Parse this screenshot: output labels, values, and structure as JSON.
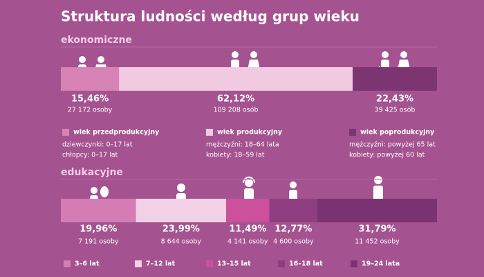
{
  "title": "Struktura ludności według grup wieku",
  "chart_data": [
    {
      "type": "stacked-bar",
      "title": "ekonomiczne",
      "series": [
        {
          "name": "wiek przedprodukcyjny",
          "color": "#d883b6",
          "values": [
            15.46
          ],
          "value_labels": [
            "15,46%"
          ],
          "count_labels": [
            "27 172 osoby"
          ],
          "details": [
            "dziewczynki: 0–17 lat",
            "chłopcy: 0–17 lat"
          ]
        },
        {
          "name": "wiek produkcyjny",
          "color": "#f1c9e1",
          "values": [
            62.12
          ],
          "value_labels": [
            "62,12%"
          ],
          "count_labels": [
            "109 208 osób"
          ],
          "details": [
            "mężczyźni: 18–64 lata",
            "kobiety: 18–59 lat"
          ]
        },
        {
          "name": "wiek poprodukcyjny",
          "color": "#7d3572",
          "values": [
            22.43
          ],
          "value_labels": [
            "22,43%"
          ],
          "count_labels": [
            "39 425 osób"
          ],
          "details": [
            "mężczyźni: powyżej 65 lat",
            "kobiety: powyżej 60 lat"
          ]
        }
      ]
    },
    {
      "type": "stacked-bar",
      "title": "edukacyjne",
      "series": [
        {
          "name": "3–6 lat",
          "color": "#d47cb3",
          "values": [
            19.96
          ],
          "value_labels": [
            "19,96%"
          ],
          "count_labels": [
            "7 191 osoby"
          ]
        },
        {
          "name": "7–12 lat",
          "color": "#f2d1e6",
          "values": [
            23.99
          ],
          "value_labels": [
            "23,99%"
          ],
          "count_labels": [
            "8 644 osoby"
          ]
        },
        {
          "name": "13–15 lat",
          "color": "#cc509c",
          "values": [
            11.49
          ],
          "value_labels": [
            "11,49%"
          ],
          "count_labels": [
            "4 141 osoby"
          ]
        },
        {
          "name": "16–18 lat",
          "color": "#8f3e82",
          "values": [
            12.77
          ],
          "value_labels": [
            "12,77%"
          ],
          "count_labels": [
            "4 600 osoby"
          ]
        },
        {
          "name": "19–24 lata",
          "color": "#7a3272",
          "values": [
            31.79
          ],
          "value_labels": [
            "31,79%"
          ],
          "count_labels": [
            "11 452 osoby"
          ]
        }
      ]
    }
  ]
}
